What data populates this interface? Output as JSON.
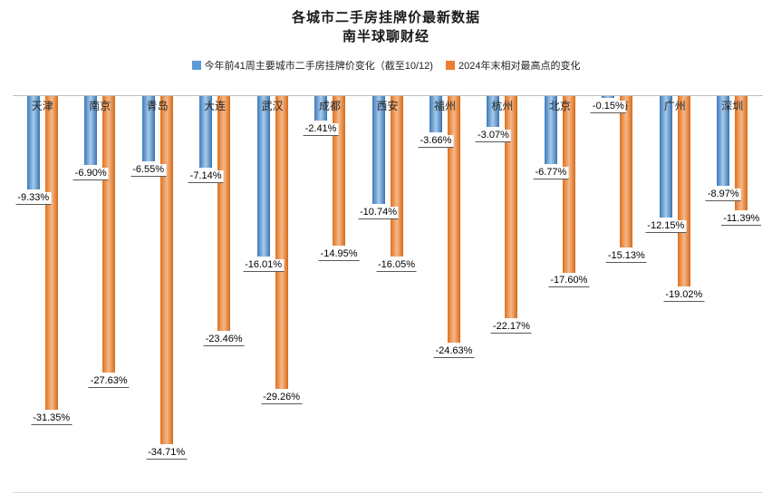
{
  "title": "各城市二手房挂牌价最新数据",
  "subtitle": "南半球聊财经",
  "legend": [
    {
      "label": "今年前41周主要城市二手房挂牌价变化（截至10/12)",
      "color": "#5B9BD5"
    },
    {
      "label": "2024年末相对最高点的变化",
      "color": "#ED7D31"
    }
  ],
  "colors": {
    "series_current": "#5B9BD5",
    "series_peak": "#ED7D31",
    "axis_line": "#BFBFBF"
  },
  "chart_data": {
    "type": "bar",
    "title": "各城市二手房挂牌价最新数据",
    "subtitle": "南半球聊财经",
    "legend_position": "top",
    "grid": false,
    "value_format": "0.00%",
    "ylim": [
      -36,
      0
    ],
    "categories": [
      "天津",
      "南京",
      "青岛",
      "大连",
      "武汉",
      "成都",
      "西安",
      "福州",
      "杭州",
      "北京",
      "上海",
      "广州",
      "深圳"
    ],
    "series": [
      {
        "name": "今年前41周主要城市二手房挂牌价变化（截至10/12)",
        "color": "#5B9BD5",
        "values": [
          -9.33,
          -6.9,
          -6.55,
          -7.14,
          -16.01,
          -2.41,
          -10.74,
          -3.66,
          -3.07,
          -6.77,
          -0.15,
          -12.15,
          -8.97
        ]
      },
      {
        "name": "2024年末相对最高点的变化",
        "color": "#ED7D31",
        "values": [
          -31.35,
          -27.63,
          -34.71,
          -23.46,
          -29.26,
          -14.95,
          -16.05,
          -24.63,
          -22.17,
          -17.6,
          -15.13,
          -19.02,
          -11.39
        ]
      }
    ]
  }
}
